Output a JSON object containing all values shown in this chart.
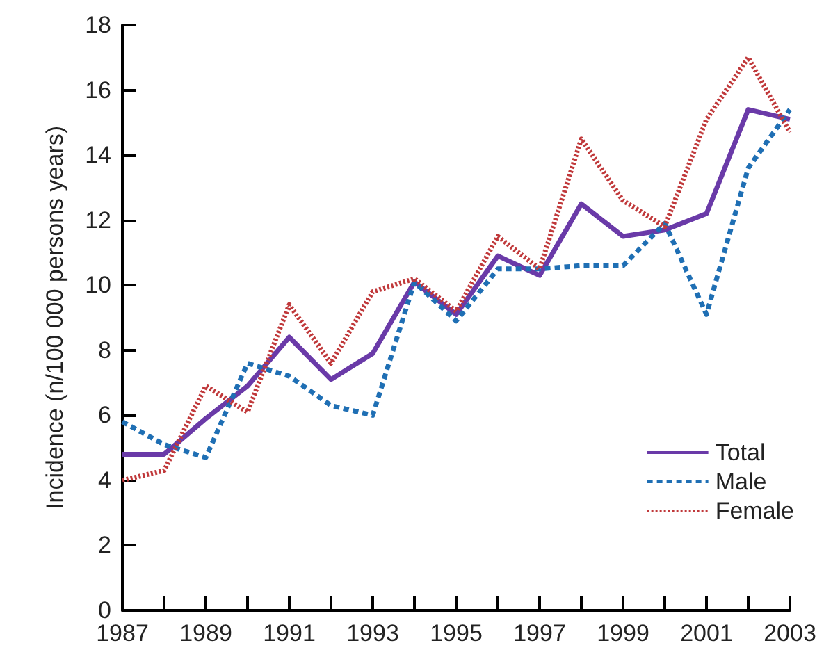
{
  "chart_data": {
    "type": "line",
    "ylabel": "Incidence (n/100 000 persons years)",
    "x": [
      1987,
      1988,
      1989,
      1990,
      1991,
      1992,
      1993,
      1994,
      1995,
      1996,
      1997,
      1998,
      1999,
      2000,
      2001,
      2002,
      2003
    ],
    "series": [
      {
        "name": "Total",
        "color": "#6a3aa8",
        "line_style": "solid",
        "values": [
          4.8,
          4.8,
          5.9,
          6.9,
          8.4,
          7.1,
          7.9,
          10.1,
          9.1,
          10.9,
          10.3,
          12.5,
          11.5,
          11.7,
          12.2,
          15.4,
          15.1
        ]
      },
      {
        "name": "Male",
        "color": "#1f6fb4",
        "line_style": "dashed",
        "values": [
          5.8,
          5.1,
          4.7,
          7.6,
          7.2,
          6.3,
          6.0,
          10.1,
          8.9,
          10.5,
          10.5,
          10.6,
          10.6,
          11.9,
          9.1,
          13.6,
          15.4
        ]
      },
      {
        "name": "Female",
        "color": "#c0393b",
        "line_style": "dotted",
        "values": [
          4.0,
          4.3,
          6.9,
          6.1,
          9.4,
          7.6,
          9.8,
          10.2,
          9.2,
          11.5,
          10.5,
          14.5,
          12.6,
          11.8,
          15.1,
          17.0,
          14.7
        ]
      }
    ],
    "xlim": [
      1987,
      2003
    ],
    "xticks": [
      1987,
      {
        "value": 1988,
        "label": null
      },
      1989,
      {
        "value": 1990,
        "label": null
      },
      1991,
      {
        "value": 1992,
        "label": null
      },
      1993,
      {
        "value": 1994,
        "label": null
      },
      1995,
      {
        "value": 1996,
        "label": null
      },
      1997,
      {
        "value": 1998,
        "label": null
      },
      1999,
      {
        "value": 2000,
        "label": null
      },
      2001,
      {
        "value": 2002,
        "label": null
      },
      2003
    ],
    "ylim": [
      0,
      18
    ],
    "yticks": [
      0,
      2,
      4,
      6,
      8,
      10,
      12,
      14,
      16,
      18
    ],
    "grid": false,
    "legend": "bottom right",
    "marker": "none"
  }
}
